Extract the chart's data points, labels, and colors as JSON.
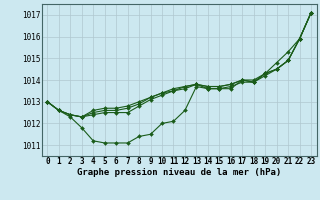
{
  "title": "Graphe pression niveau de la mer (hPa)",
  "bg_color": "#cce8f0",
  "grid_color": "#b0c8d0",
  "line_color": "#1a5c1a",
  "ylim": [
    1010.5,
    1017.5
  ],
  "xlim": [
    -0.5,
    23.5
  ],
  "yticks": [
    1011,
    1012,
    1013,
    1014,
    1015,
    1016,
    1017
  ],
  "xticks": [
    0,
    1,
    2,
    3,
    4,
    5,
    6,
    7,
    8,
    9,
    10,
    11,
    12,
    13,
    14,
    15,
    16,
    17,
    18,
    19,
    20,
    21,
    22,
    23
  ],
  "series": [
    [
      1013.0,
      1012.6,
      1012.3,
      1011.8,
      1011.2,
      1011.1,
      1011.1,
      1011.1,
      1011.4,
      1011.5,
      1012.0,
      1012.1,
      1012.6,
      1013.7,
      1013.6,
      1013.6,
      1013.6,
      1014.0,
      1013.9,
      1014.3,
      1014.8,
      1015.3,
      1015.9,
      1017.1
    ],
    [
      1013.0,
      1012.6,
      1012.4,
      1012.3,
      1012.4,
      1012.5,
      1012.5,
      1012.5,
      1012.8,
      1013.1,
      1013.3,
      1013.5,
      1013.6,
      1013.8,
      1013.6,
      1013.6,
      1013.7,
      1013.9,
      1013.9,
      1014.2,
      1014.5,
      1014.9,
      1015.9,
      1017.1
    ],
    [
      1013.0,
      1012.6,
      1012.4,
      1012.3,
      1012.5,
      1012.6,
      1012.6,
      1012.7,
      1012.9,
      1013.2,
      1013.4,
      1013.5,
      1013.7,
      1013.8,
      1013.7,
      1013.7,
      1013.8,
      1014.0,
      1013.9,
      1014.3,
      1014.5,
      1014.9,
      1015.9,
      1017.1
    ],
    [
      1013.0,
      1012.6,
      1012.4,
      1012.3,
      1012.6,
      1012.7,
      1012.7,
      1012.8,
      1013.0,
      1013.2,
      1013.4,
      1013.6,
      1013.7,
      1013.8,
      1013.7,
      1013.7,
      1013.8,
      1014.0,
      1014.0,
      1014.3,
      1014.5,
      1014.9,
      1015.9,
      1017.1
    ]
  ],
  "markersize": 2.0,
  "linewidth": 0.8,
  "title_fontsize": 6.5,
  "tick_fontsize": 5.5
}
